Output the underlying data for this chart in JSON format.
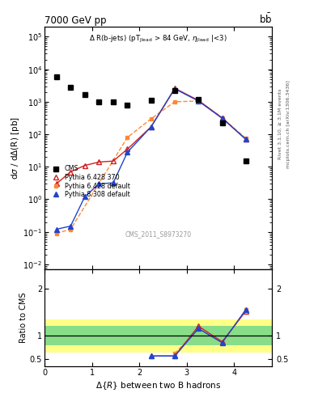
{
  "title_left": "7000 GeV pp",
  "title_right": "b$\\bar{b}$",
  "watermark": "CMS_2011_S8973270",
  "right_label_top": "Rivet 3.1.10, ≥ 3.1M events",
  "right_label_bot": "mcplots.cern.ch [arXiv:1306.3436]",
  "xlabel": "Δ{R} between two B hadrons",
  "ylabel_main": "dσ / dΔ(R) [pb]",
  "ylabel_ratio": "Ratio to CMS",
  "cms_x": [
    0.25,
    0.55,
    0.85,
    1.15,
    1.45,
    1.75,
    2.25,
    2.75,
    3.25,
    3.75,
    4.25,
    4.55
  ],
  "cms_y": [
    6000,
    2800,
    1700,
    1000,
    1000,
    800,
    1100,
    2200,
    1200,
    220,
    15,
    0
  ],
  "py6_370_x": [
    0.25,
    0.55,
    0.85,
    1.15,
    1.45,
    1.75,
    2.25,
    2.75,
    3.25,
    3.75,
    4.25,
    4.55
  ],
  "py6_370_y": [
    3.0,
    7.0,
    11.0,
    14.0,
    15.0,
    35.0,
    170.0,
    2600.0,
    1100.0,
    320.0,
    70.0,
    0
  ],
  "py6_def_x": [
    0.25,
    0.55,
    1.75,
    2.25,
    2.75,
    3.25,
    3.75,
    4.25
  ],
  "py6_def_y": [
    0.09,
    0.12,
    80.0,
    300.0,
    1000.0,
    1050.0,
    320.0,
    75.0
  ],
  "py8_def_x": [
    0.25,
    0.55,
    0.85,
    1.15,
    1.45,
    1.75,
    2.25,
    2.75,
    3.25,
    3.75,
    4.25
  ],
  "py8_def_y": [
    0.12,
    0.15,
    1.2,
    3.0,
    3.2,
    28.0,
    170.0,
    2500.0,
    1050.0,
    310.0,
    70.0
  ],
  "py6_370_color": "#cc2222",
  "py6_def_color": "#ff8833",
  "py8_def_color": "#2244cc",
  "py6_370_label": "Pythia 6.428 370",
  "py6_def_label": "Pythia 6.428 default",
  "py8_def_label": "Pythia 8.308 default",
  "band_edges": [
    0.0,
    0.5,
    1.0,
    1.5,
    2.0,
    2.5,
    3.0,
    3.5,
    4.0,
    4.5,
    4.8
  ],
  "yellow_lo": [
    0.65,
    0.65,
    0.65,
    0.65,
    0.65,
    0.65,
    0.65,
    0.65,
    0.65,
    0.65
  ],
  "yellow_hi": [
    1.35,
    1.35,
    1.35,
    1.35,
    1.35,
    1.35,
    1.35,
    1.35,
    1.35,
    1.35
  ],
  "green_lo": [
    0.8,
    0.8,
    0.8,
    0.8,
    0.8,
    0.8,
    0.8,
    0.8,
    0.8,
    0.8
  ],
  "green_hi": [
    1.2,
    1.2,
    1.2,
    1.2,
    1.2,
    1.2,
    1.2,
    1.2,
    1.2,
    1.2
  ],
  "ratio_x": [
    2.25,
    2.75,
    3.25,
    3.75,
    4.25
  ],
  "ratio_py6_370_y": [
    0.57,
    0.57,
    1.2,
    0.87,
    1.52
  ],
  "ratio_py6_def_y": [
    0.0,
    0.62,
    1.15,
    0.85,
    1.55
  ],
  "ratio_py8_def_y": [
    0.57,
    0.57,
    1.15,
    0.85,
    1.55
  ],
  "ylim_main": [
    0.007,
    200000
  ],
  "ylim_ratio": [
    0.35,
    2.4
  ],
  "xlim": [
    0.0,
    4.8
  ]
}
